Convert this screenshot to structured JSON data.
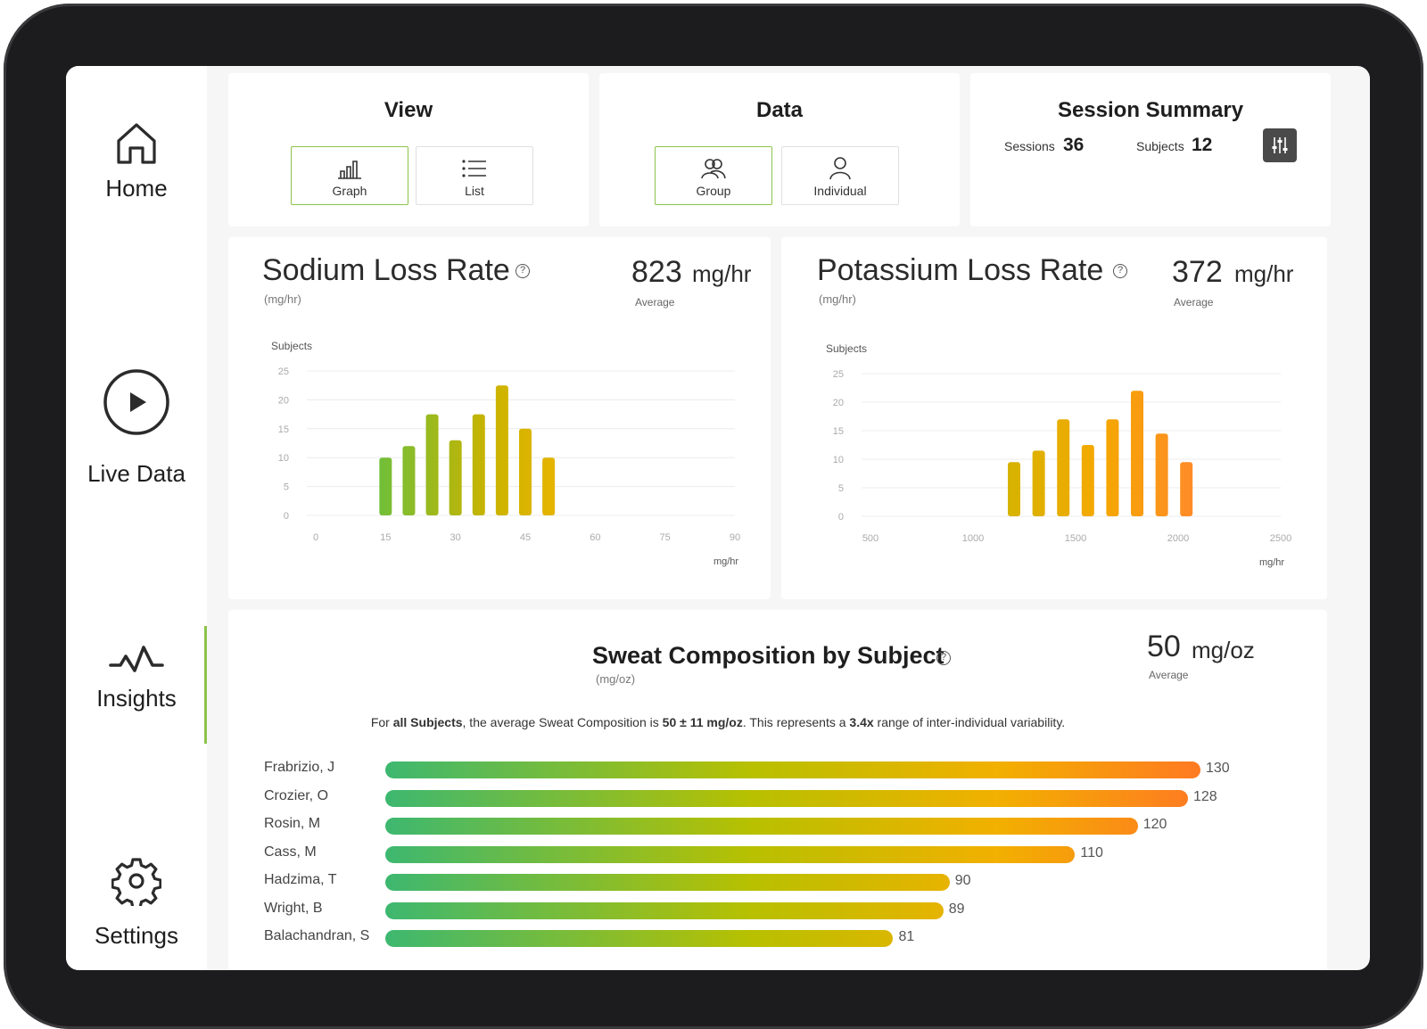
{
  "nav": {
    "home": "Home",
    "live": "Live Data",
    "insights": "Insights",
    "settings": "Settings"
  },
  "view": {
    "title": "View",
    "graph": "Graph",
    "list": "List"
  },
  "data": {
    "title": "Data",
    "group": "Group",
    "individual": "Individual"
  },
  "summary": {
    "title": "Session Summary",
    "sessions_label": "Sessions",
    "sessions_value": "36",
    "subjects_label": "Subjects",
    "subjects_value": "12"
  },
  "sodium": {
    "title": "Sodium Loss Rate",
    "unit": "(mg/hr)",
    "avg_value": "823",
    "avg_unit": "mg/hr",
    "avg_label": "Average"
  },
  "potassium": {
    "title": "Potassium Loss Rate",
    "unit": "(mg/hr)",
    "avg_value": "372",
    "avg_unit": "mg/hr",
    "avg_label": "Average"
  },
  "sweat": {
    "title": "Sweat Composition by Subject",
    "unit": "(mg/oz)",
    "avg_value": "50",
    "avg_unit": "mg/oz",
    "avg_label": "Average",
    "desc_1": "For ",
    "desc_2": "all Subjects",
    "desc_3": ", the average Sweat Composition is ",
    "desc_4": "50 ± 11 mg/oz",
    "desc_5": ". This represents a ",
    "desc_6": "3.4x",
    "desc_7": " range of inter-individual variability."
  },
  "help_glyph": "?",
  "colors": {
    "green": "#5cb85c",
    "yellow": "#d4b400",
    "orange": "#ff8c1a",
    "active_border": "#8bc34a"
  },
  "chart_data": [
    {
      "type": "bar",
      "title": "Sodium Loss Rate",
      "ylabel": "Subjects",
      "xlabel": "mg/hr",
      "x_ticks": [
        "0",
        "15",
        "30",
        "45",
        "60",
        "75",
        "90"
      ],
      "y_ticks": [
        "0",
        "5",
        "10",
        "15",
        "20",
        "25"
      ],
      "xlim": [
        0,
        90
      ],
      "ylim": [
        0,
        25
      ],
      "x": [
        15,
        20,
        25,
        30,
        35,
        40,
        45,
        50
      ],
      "values": [
        10,
        12,
        17.5,
        13,
        17.5,
        22.5,
        15,
        10
      ],
      "grid": true
    },
    {
      "type": "bar",
      "title": "Potassium Loss Rate",
      "ylabel": "Subjects",
      "xlabel": "mg/hr",
      "x_ticks": [
        "500",
        "1000",
        "1500",
        "2000",
        "2500"
      ],
      "y_ticks": [
        "0",
        "5",
        "10",
        "15",
        "20",
        "25"
      ],
      "xlim": [
        500,
        2500
      ],
      "ylim": [
        0,
        25
      ],
      "x": [
        1200,
        1320,
        1440,
        1560,
        1680,
        1800,
        1920,
        2040
      ],
      "values": [
        9.5,
        11.5,
        17,
        12.5,
        17,
        22,
        14.5,
        9.5
      ],
      "grid": true
    },
    {
      "type": "bar",
      "orientation": "horizontal",
      "title": "Sweat Composition by Subject",
      "categories": [
        "Frabrizio, J",
        "Crozier, O",
        "Rosin, M",
        "Cass, M",
        "Hadzima, T",
        "Wright, B",
        "Balachandran, S"
      ],
      "values": [
        130,
        128,
        120,
        110,
        90,
        89,
        81
      ]
    }
  ]
}
